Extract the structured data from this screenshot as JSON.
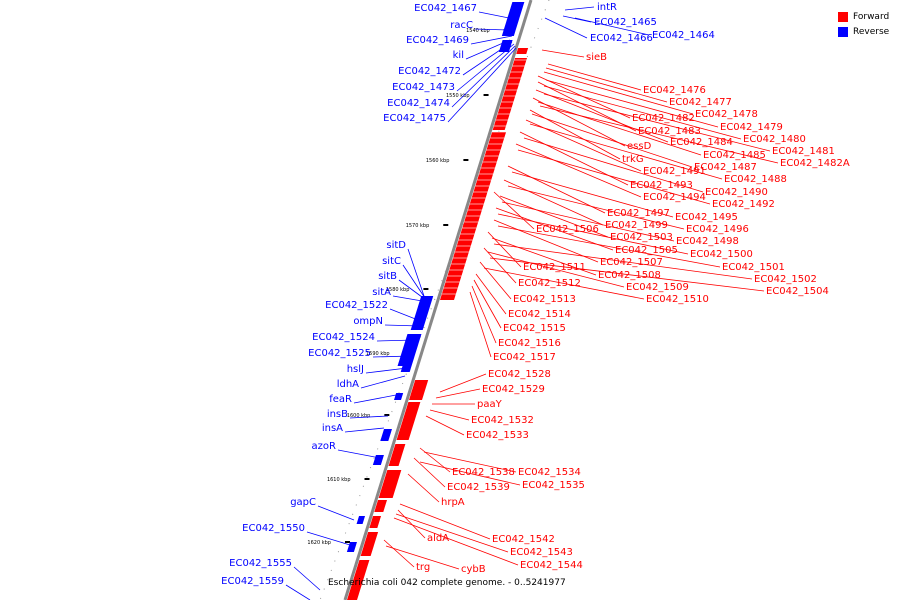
{
  "legend": [
    {
      "label": "Forward",
      "color": "#ff0000"
    },
    {
      "label": "Reverse",
      "color": "#0000ff"
    }
  ],
  "caption": "Escherichia coli 042 complete genome. - 0..5241977",
  "colors": {
    "forward": "#ff0000",
    "reverse": "#0000ff",
    "backbone": "#888888"
  },
  "kbp_ticks": [
    "1540 kbp",
    "1550 kbp",
    "1560 kbp",
    "1570 kbp",
    "1580 kbp",
    "1590 kbp",
    "1600 kbp",
    "1610 kbp",
    "1620 kbp"
  ],
  "reverse_labels": [
    "EC042_1467",
    "racC",
    "EC042_1469",
    "kil",
    "EC042_1472",
    "EC042_1473",
    "EC042_1474",
    "EC042_1475",
    "sitD",
    "sitC",
    "sitB",
    "sitA",
    "EC042_1522",
    "ompN",
    "EC042_1524",
    "EC042_1525",
    "hslJ",
    "ldhA",
    "feaR",
    "insB",
    "insA",
    "azoR",
    "gapC",
    "EC042_1550",
    "EC042_1555",
    "EC042_1559"
  ],
  "reverse_right_labels": [
    "intR",
    "EC042_1465",
    "EC042_1466",
    "EC042_1464"
  ],
  "forward_labels": [
    "sieB",
    "EC042_1476",
    "EC042_1477",
    "EC042_1478",
    "EC042_1482",
    "EC042_1479",
    "EC042_1483",
    "EC042_1480",
    "EC042_1484",
    "EC042_1481",
    "essD",
    "EC042_1485",
    "EC042_1482A",
    "trkG",
    "EC042_1487",
    "EC042_1491",
    "EC042_1488",
    "EC042_1493",
    "EC042_1490",
    "EC042_1494",
    "EC042_1492",
    "EC042_1497",
    "EC042_1495",
    "EC042_1499",
    "EC042_1496",
    "EC042_1506",
    "EC042_1503",
    "EC042_1498",
    "EC042_1505",
    "EC042_1500",
    "EC042_1507",
    "EC042_1501",
    "EC042_1511",
    "EC042_1508",
    "EC042_1502",
    "EC042_1512",
    "EC042_1509",
    "EC042_1504",
    "EC042_1513",
    "EC042_1510",
    "EC042_1514",
    "EC042_1515",
    "EC042_1516",
    "EC042_1517",
    "EC042_1528",
    "EC042_1529",
    "paaY",
    "EC042_1532",
    "EC042_1533",
    "EC042_1538",
    "EC042_1534",
    "EC042_1539",
    "EC042_1535",
    "hrpA",
    "EC042_1542",
    "aldA",
    "EC042_1543",
    "EC042_1544",
    "trg",
    "cybB"
  ]
}
